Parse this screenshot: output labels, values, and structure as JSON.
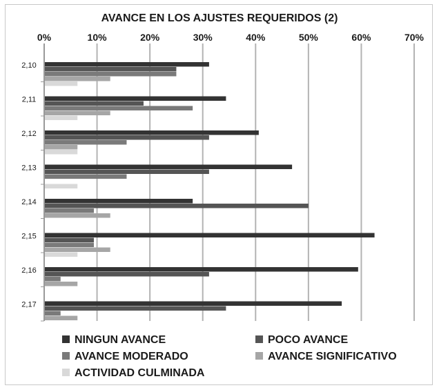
{
  "chart_data": {
    "type": "bar",
    "orientation": "horizontal",
    "title": "AVANCE EN LOS AJUSTES REQUERIDOS (2)",
    "xlabel": "",
    "ylabel": "",
    "xlim": [
      0,
      70
    ],
    "x_ticks": [
      "0%",
      "10%",
      "20%",
      "30%",
      "40%",
      "50%",
      "60%",
      "70%"
    ],
    "x_tick_values": [
      0,
      10,
      20,
      30,
      40,
      50,
      60,
      70
    ],
    "x_tick_position": "top",
    "grid": true,
    "legend_position": "bottom",
    "categories": [
      "2,10",
      "2,11",
      "2,12",
      "2,13",
      "2,14",
      "2,15",
      "2,16",
      "2,17"
    ],
    "series": [
      {
        "name": "NINGUN AVANCE",
        "color": "#333333",
        "values": [
          31.2,
          34.4,
          40.6,
          46.9,
          28.1,
          62.5,
          59.4,
          56.3
        ]
      },
      {
        "name": "POCO AVANCE",
        "color": "#555555",
        "values": [
          25.0,
          18.8,
          31.2,
          31.2,
          50.0,
          9.4,
          31.2,
          34.4
        ]
      },
      {
        "name": "AVANCE MODERADO",
        "color": "#7a7a7a",
        "values": [
          25.0,
          28.1,
          15.6,
          15.6,
          9.4,
          9.4,
          3.1,
          3.1
        ]
      },
      {
        "name": "AVANCE SIGNIFICATIVO",
        "color": "#a6a6a6",
        "values": [
          12.5,
          12.5,
          6.3,
          0,
          12.5,
          12.5,
          6.3,
          6.3
        ]
      },
      {
        "name": "ACTIVIDAD CULMINADA",
        "color": "#d9d9d9",
        "values": [
          6.3,
          6.3,
          6.3,
          6.3,
          0,
          6.3,
          0,
          0
        ]
      }
    ]
  }
}
